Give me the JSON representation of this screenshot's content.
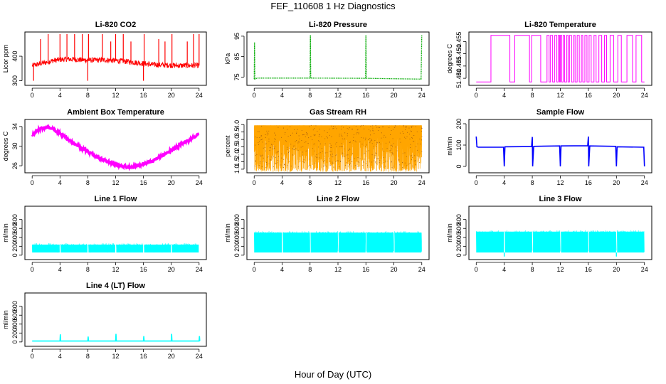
{
  "figure": {
    "title": "FEF_110608  1 Hz Diagnostics",
    "xlabel": "Hour of Day (UTC)"
  },
  "chart_data": [
    {
      "type": "line",
      "title": "Li-820 CO2",
      "ylabel": "Licor ppm",
      "xlim": [
        0,
        24
      ],
      "ylim": [
        290,
        490
      ],
      "x_ticks": [
        0,
        4,
        8,
        12,
        16,
        20,
        24
      ],
      "y_ticks": [
        300,
        400
      ],
      "color": "#ff0000",
      "series": [
        {
          "x": [
            0,
            1,
            2,
            3,
            4,
            5,
            6,
            7,
            8,
            9,
            10,
            11,
            12,
            13,
            14,
            15,
            16,
            17,
            18,
            19,
            20,
            21,
            22,
            23,
            24
          ],
          "y": [
            362,
            368,
            375,
            382,
            386,
            388,
            387,
            385,
            384,
            384,
            385,
            384,
            382,
            380,
            377,
            374,
            370,
            367,
            365,
            364,
            363,
            362,
            362,
            362,
            362
          ],
          "spikes": [
            [
              0.2,
              300
            ],
            [
              1.2,
              470
            ],
            [
              2.3,
              490
            ],
            [
              4.0,
              490
            ],
            [
              5.0,
              490
            ],
            [
              6.1,
              490
            ],
            [
              7.2,
              490
            ],
            [
              8.0,
              300
            ],
            [
              8.1,
              490
            ],
            [
              10.1,
              490
            ],
            [
              11.3,
              460
            ],
            [
              12.0,
              490
            ],
            [
              13.1,
              490
            ],
            [
              14.2,
              460
            ],
            [
              16.0,
              300
            ],
            [
              16.1,
              490
            ],
            [
              18.2,
              470
            ],
            [
              19.1,
              460
            ],
            [
              20.1,
              490
            ],
            [
              22.3,
              460
            ],
            [
              23.2,
              490
            ],
            [
              24.0,
              490
            ]
          ]
        }
      ]
    },
    {
      "type": "line",
      "title": "Li-820 Pressure",
      "ylabel": "kPa",
      "xlim": [
        0,
        24
      ],
      "ylim": [
        72,
        96
      ],
      "x_ticks": [
        0,
        4,
        8,
        12,
        16,
        20,
        24
      ],
      "y_ticks": [
        75,
        85,
        95
      ],
      "color": "#00aa00",
      "series": [
        {
          "x": [
            0,
            0.05,
            0.1,
            0.4,
            8,
            8.05,
            8.1,
            15.95,
            16.0,
            16.05,
            19.5,
            23.9,
            24.0
          ],
          "y": [
            74,
            92,
            74,
            74.5,
            74.5,
            95.5,
            74.5,
            74.4,
            95.5,
            74.4,
            74.2,
            74.0,
            95.5
          ]
        }
      ]
    },
    {
      "type": "line",
      "title": "Li-820 Temperature",
      "ylabel": "degrees C",
      "xlim": [
        0,
        24
      ],
      "ylim": [
        51.438,
        51.458
      ],
      "x_ticks": [
        0,
        4,
        8,
        12,
        16,
        20,
        24
      ],
      "y_ticks": [
        51.44,
        51.445,
        51.45,
        51.455
      ],
      "y_tick_labels": [
        "51.440",
        "51.445",
        "51.450",
        "51.455"
      ],
      "color": "#ff00ff",
      "series": [
        {
          "baseline": 51.4385,
          "top": 51.4575,
          "toggle_hours": [
            2.1,
            4.8,
            5.5,
            7.6,
            7.9,
            9.2,
            10.1,
            10.4,
            10.6,
            10.9,
            11.2,
            11.5,
            11.7,
            11.9,
            12.0,
            12.2,
            12.4,
            12.6,
            12.9,
            13.1,
            13.3,
            13.6,
            13.9,
            14.1,
            14.4,
            14.7,
            15.0,
            15.2,
            15.5,
            15.8,
            16.1,
            16.4,
            16.8,
            17.1,
            17.5,
            17.9,
            18.3,
            18.6,
            19.1,
            19.6,
            20.2,
            20.7,
            21.5,
            22.3,
            22.8,
            23.6
          ]
        }
      ]
    },
    {
      "type": "line",
      "title": "Ambient Box Temperature",
      "ylabel": "degrees C",
      "xlim": [
        0,
        24
      ],
      "ylim": [
        25,
        35
      ],
      "x_ticks": [
        0,
        4,
        8,
        12,
        16,
        20,
        24
      ],
      "y_ticks": [
        26,
        30,
        34
      ],
      "color": "#ff00ff",
      "series": [
        {
          "x": [
            0,
            1,
            2,
            3,
            4,
            5,
            6,
            7,
            8,
            9,
            10,
            11,
            12,
            13,
            14,
            15,
            16,
            17,
            18,
            19,
            20,
            21,
            22,
            23,
            24
          ],
          "y": [
            32.2,
            33.4,
            33.9,
            33.5,
            32.6,
            31.6,
            30.6,
            29.7,
            28.9,
            28.1,
            27.4,
            26.8,
            26.2,
            25.9,
            25.8,
            25.9,
            26.3,
            26.8,
            27.5,
            28.3,
            29.1,
            30.0,
            30.9,
            31.6,
            32.4
          ]
        }
      ]
    },
    {
      "type": "line",
      "title": "Gas Stream RH",
      "ylabel": "percent",
      "xlim": [
        0,
        24
      ],
      "ylim": [
        0.9,
        4.2
      ],
      "x_ticks": [
        0,
        4,
        8,
        12,
        16,
        20,
        24
      ],
      "y_ticks": [
        1.0,
        1.5,
        2.0,
        2.5,
        3.0,
        3.5,
        4.0
      ],
      "y_tick_labels": [
        "1.0",
        "1.5",
        "2.0",
        "2.5",
        "3.0",
        "3.5",
        "4.0"
      ],
      "color": "#ffa500",
      "series": [
        {
          "band_top": 3.95,
          "band_bottom": 1.1,
          "dense_low": 3.2
        }
      ]
    },
    {
      "type": "line",
      "title": "Sample Flow",
      "ylabel": "ml/min",
      "xlim": [
        0,
        24
      ],
      "ylim": [
        -20,
        210
      ],
      "x_ticks": [
        0,
        4,
        8,
        12,
        16,
        20,
        24
      ],
      "y_ticks": [
        0,
        100,
        200
      ],
      "color": "#0000ff",
      "series": [
        {
          "x": [
            0,
            0.1,
            0.3,
            3.9,
            4.0,
            4.1,
            7.9,
            8.0,
            8.05,
            8.2,
            11.9,
            12.0,
            12.1,
            15.9,
            16.0,
            16.05,
            16.2,
            19.9,
            20.0,
            20.1,
            23.9,
            24.0
          ],
          "y": [
            140,
            92,
            90,
            90,
            0,
            92,
            93,
            138,
            0,
            94,
            96,
            0,
            96,
            97,
            140,
            0,
            96,
            94,
            0,
            92,
            90,
            0
          ]
        }
      ]
    },
    {
      "type": "line",
      "title": "Line 1 Flow",
      "ylabel": "ml/min",
      "xlim": [
        0,
        24
      ],
      "ylim": [
        -50,
        1050
      ],
      "x_ticks": [
        0,
        4,
        8,
        12,
        16,
        20,
        24
      ],
      "y_ticks": [
        0,
        200,
        400,
        600,
        800
      ],
      "color": "#00ffff",
      "series": [
        {
          "band_top": 270,
          "band_bottom": 60,
          "gap_hours": [
            4,
            8,
            12,
            16,
            20
          ]
        }
      ]
    },
    {
      "type": "line",
      "title": "Line 2 Flow",
      "ylabel": "ml/min",
      "xlim": [
        0,
        24
      ],
      "ylim": [
        -50,
        1050
      ],
      "x_ticks": [
        0,
        4,
        8,
        12,
        16,
        20,
        24
      ],
      "y_ticks": [
        0,
        200,
        400,
        600,
        800
      ],
      "color": "#00ffff",
      "series": [
        {
          "band_top": 540,
          "band_bottom": 60,
          "gap_hours": [
            4,
            8,
            12,
            16,
            20
          ]
        }
      ]
    },
    {
      "type": "line",
      "title": "Line 3 Flow",
      "ylabel": "ml/min",
      "xlim": [
        0,
        24
      ],
      "ylim": [
        -50,
        1050
      ],
      "x_ticks": [
        0,
        4,
        8,
        12,
        16,
        20,
        24
      ],
      "y_ticks": [
        0,
        200,
        400,
        600,
        800
      ],
      "color": "#00ffff",
      "series": [
        {
          "band_top": 560,
          "band_bottom": 60,
          "gap_hours": [
            4,
            8,
            12,
            16,
            20
          ],
          "dips": [
            4,
            20
          ]
        }
      ]
    },
    {
      "type": "line",
      "title": "Line 4 (LT) Flow",
      "ylabel": "ml/min",
      "xlim": [
        0,
        24
      ],
      "ylim": [
        -50,
        1050
      ],
      "x_ticks": [
        0,
        4,
        8,
        12,
        16,
        20,
        24
      ],
      "y_ticks": [
        0,
        200,
        400,
        600,
        800
      ],
      "color": "#00ffff",
      "series": [
        {
          "x": [
            0,
            4.0,
            4.05,
            4.1,
            8.0,
            8.05,
            8.1,
            12.0,
            12.05,
            12.1,
            16.0,
            16.05,
            16.1,
            20.0,
            20.05,
            20.1,
            24.0,
            24.05,
            24.1
          ],
          "y": [
            20,
            20,
            170,
            20,
            20,
            120,
            20,
            20,
            180,
            20,
            20,
            130,
            20,
            20,
            180,
            20,
            20,
            130,
            20
          ]
        }
      ]
    }
  ]
}
